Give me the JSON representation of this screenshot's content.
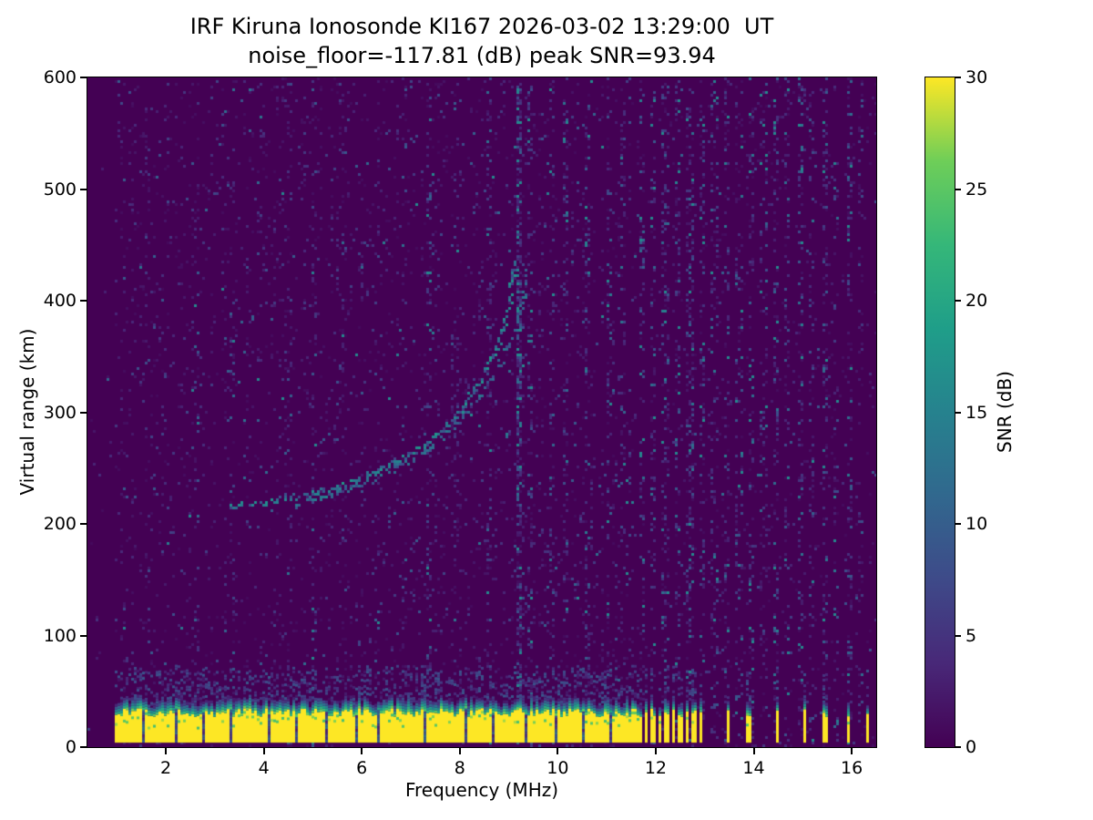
{
  "chart_data": {
    "type": "heatmap",
    "title": "IRF Kiruna Ionosonde KI167 2026-03-02 13:29:00  UT",
    "subtitle": "noise_floor=-117.81 (dB) peak SNR=93.94",
    "xlabel": "Frequency (MHz)",
    "ylabel": "Virtual range (km)",
    "x_range": [
      0.4,
      16.5
    ],
    "y_range": [
      0,
      600
    ],
    "x_ticks": [
      2,
      4,
      6,
      8,
      10,
      12,
      14,
      16
    ],
    "y_ticks": [
      0,
      100,
      200,
      300,
      400,
      500,
      600
    ],
    "grid": false,
    "noise_floor_db": -117.81,
    "peak_snr_db": 93.94,
    "colorbar": {
      "label": "SNR (dB)",
      "range": [
        0,
        30
      ],
      "ticks": [
        0,
        5,
        10,
        15,
        20,
        25,
        30
      ],
      "colormap": "viridis",
      "position": "right"
    },
    "colormap_stops": [
      [
        0.0,
        "#440154"
      ],
      [
        0.125,
        "#482878"
      ],
      [
        0.25,
        "#3e4a89"
      ],
      [
        0.375,
        "#31688e"
      ],
      [
        0.5,
        "#26828e"
      ],
      [
        0.625,
        "#1f9e89"
      ],
      [
        0.75,
        "#35b779"
      ],
      [
        0.875,
        "#6ece58"
      ],
      [
        1.0,
        "#fde725"
      ]
    ],
    "background_color": "#ffffff",
    "frame_color": "#000000",
    "ground_band": {
      "f_start": 0.95,
      "f_end": 16.42,
      "bottom_km": 4,
      "top_km": 29,
      "gap_above_mhz": 11.62
    },
    "tx_bars": [
      [
        11.63,
        11.71
      ],
      [
        11.77,
        11.85
      ],
      [
        11.91,
        11.99
      ],
      [
        12.05,
        12.13
      ],
      [
        12.19,
        12.27
      ],
      [
        12.33,
        12.41
      ],
      [
        12.47,
        12.55
      ],
      [
        12.61,
        12.69
      ],
      [
        12.75,
        12.83
      ],
      [
        12.89,
        12.97
      ],
      [
        13.43,
        13.51
      ],
      [
        13.85,
        13.93
      ],
      [
        14.43,
        14.51
      ],
      [
        14.99,
        15.07
      ],
      [
        15.43,
        15.51
      ],
      [
        15.89,
        15.97
      ],
      [
        16.28,
        16.36
      ]
    ],
    "notch_freqs": [
      1.55,
      2.2,
      2.75,
      3.35,
      4.1,
      4.65,
      5.3,
      5.9,
      6.35,
      7.3,
      8.1,
      8.7,
      9.35,
      9.95,
      10.5,
      11.1
    ],
    "rfi_lines": [
      {
        "f": 2.6,
        "s": 0.12
      },
      {
        "f": 3.35,
        "s": 0.15
      },
      {
        "f": 3.9,
        "s": 0.12
      },
      {
        "f": 4.55,
        "s": 0.15
      },
      {
        "f": 5.05,
        "s": 0.18
      },
      {
        "f": 5.6,
        "s": 0.15
      },
      {
        "f": 6.3,
        "s": 0.18
      },
      {
        "f": 6.85,
        "s": 0.15
      },
      {
        "f": 7.35,
        "s": 0.4
      },
      {
        "f": 7.9,
        "s": 0.22
      },
      {
        "f": 8.6,
        "s": 0.28
      },
      {
        "f": 9.2,
        "s": 0.9
      },
      {
        "f": 9.42,
        "s": 0.38
      },
      {
        "f": 9.9,
        "s": 0.2
      },
      {
        "f": 10.15,
        "s": 0.28
      },
      {
        "f": 10.6,
        "s": 0.32
      },
      {
        "f": 11.05,
        "s": 0.28
      },
      {
        "f": 11.35,
        "s": 0.28
      },
      {
        "f": 11.7,
        "s": 0.45
      },
      {
        "f": 11.95,
        "s": 0.4
      },
      {
        "f": 12.2,
        "s": 0.45
      },
      {
        "f": 12.45,
        "s": 0.4
      },
      {
        "f": 12.7,
        "s": 0.45
      },
      {
        "f": 12.95,
        "s": 0.4
      },
      {
        "f": 13.2,
        "s": 0.35
      },
      {
        "f": 13.45,
        "s": 0.4
      },
      {
        "f": 13.7,
        "s": 0.35
      },
      {
        "f": 13.95,
        "s": 0.42
      },
      {
        "f": 14.2,
        "s": 0.35
      },
      {
        "f": 14.45,
        "s": 0.45
      },
      {
        "f": 14.7,
        "s": 0.3
      },
      {
        "f": 14.95,
        "s": 0.38
      },
      {
        "f": 15.2,
        "s": 0.32
      },
      {
        "f": 15.45,
        "s": 0.42
      },
      {
        "f": 15.7,
        "s": 0.3
      },
      {
        "f": 15.95,
        "s": 0.4
      },
      {
        "f": 16.2,
        "s": 0.32
      }
    ],
    "echo_traces": [
      {
        "name": "F-layer trace O-mode",
        "intensity": 0.85,
        "points": [
          [
            3.3,
            217
          ],
          [
            3.7,
            219
          ],
          [
            4.1,
            221
          ],
          [
            4.5,
            224
          ],
          [
            4.9,
            227
          ],
          [
            5.3,
            231
          ],
          [
            5.7,
            237
          ],
          [
            6.1,
            245
          ],
          [
            6.5,
            253
          ],
          [
            6.9,
            262
          ],
          [
            7.3,
            274
          ],
          [
            7.7,
            288
          ],
          [
            8.0,
            303
          ],
          [
            8.3,
            321
          ],
          [
            8.6,
            344
          ],
          [
            8.8,
            366
          ],
          [
            8.95,
            390
          ],
          [
            9.05,
            415
          ],
          [
            9.1,
            435
          ]
        ]
      },
      {
        "name": "F-layer trace X-mode",
        "intensity": 0.55,
        "points": [
          [
            4.6,
            219
          ],
          [
            5.0,
            223
          ],
          [
            5.4,
            228
          ],
          [
            5.8,
            234
          ],
          [
            6.2,
            241
          ],
          [
            6.6,
            249
          ],
          [
            7.0,
            259
          ],
          [
            7.4,
            271
          ],
          [
            7.8,
            286
          ],
          [
            8.2,
            304
          ],
          [
            8.6,
            328
          ],
          [
            8.9,
            352
          ],
          [
            9.15,
            380
          ],
          [
            9.3,
            408
          ],
          [
            9.38,
            430
          ]
        ]
      }
    ]
  }
}
